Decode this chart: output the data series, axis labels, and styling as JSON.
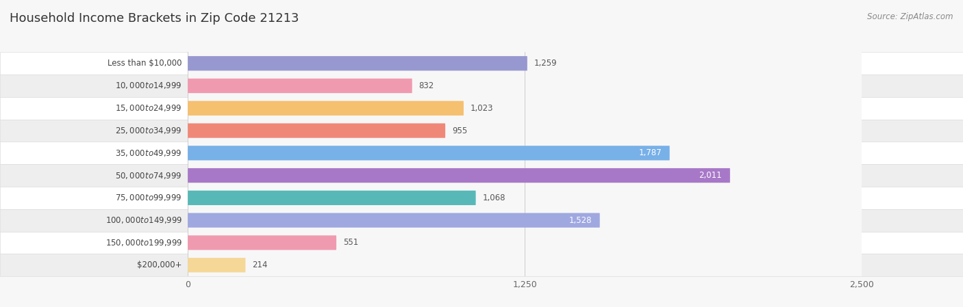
{
  "title": "Household Income Brackets in Zip Code 21213",
  "source": "Source: ZipAtlas.com",
  "categories": [
    "Less than $10,000",
    "$10,000 to $14,999",
    "$15,000 to $24,999",
    "$25,000 to $34,999",
    "$35,000 to $49,999",
    "$50,000 to $74,999",
    "$75,000 to $99,999",
    "$100,000 to $149,999",
    "$150,000 to $199,999",
    "$200,000+"
  ],
  "values": [
    1259,
    832,
    1023,
    955,
    1787,
    2011,
    1068,
    1528,
    551,
    214
  ],
  "bar_colors": [
    "#9898d0",
    "#f09ab0",
    "#f5c070",
    "#f08878",
    "#78b0e8",
    "#a878c8",
    "#58b8b8",
    "#a0a8e0",
    "#f09ab0",
    "#f5d898"
  ],
  "xlim": [
    0,
    2500
  ],
  "xticks": [
    0,
    1250,
    2500
  ],
  "background_color": "#f7f7f7",
  "row_bg_light": "#ffffff",
  "row_bg_dark": "#eeeeee",
  "title_fontsize": 13,
  "label_fontsize": 8.5,
  "value_fontsize": 8.5,
  "bar_height": 0.65,
  "value_threshold": 1400
}
